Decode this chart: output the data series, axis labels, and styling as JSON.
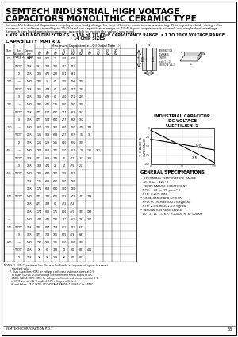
{
  "title_line1": "SEMTECH INDUSTRIAL HIGH VOLTAGE",
  "title_line2": "CAPACITORS MONOLITHIC CERAMIC TYPE",
  "desc1": "Semtech's Industrial Capacitors employ a new body design for cost efficient, volume manufacturing. This capacitor body design also",
  "desc2": "expands our voltage capability to 10 KV and our capacitance range to 47µF. If your requirement exceeds our single device ratings,",
  "desc3": "Semtech can build precision capacitor assembly to match the values you need.",
  "bullet1": "• X7R AND NPO DIELECTRICS  • 100 pF TO 47µF CAPACITANCE RANGE  • 1 TO 10KV VOLTAGE RANGE",
  "bullet2": "• 14 CHIP SIZES",
  "cap_matrix_title": "CAPABILITY MATRIX",
  "max_cap_header": "Maximum Capacitance—Oil Data (Note 1)",
  "col_headers": [
    "Size",
    "Size\nVoltage\n(Note 2)",
    "Dielec-\ntric\nType",
    "1\nKV",
    "2\nKV",
    "3\nKV",
    "5\nKV",
    "6.3\nKV",
    "8 KV",
    "7 KV",
    "10\nKV",
    "0.5\nKV",
    "20\nKV"
  ],
  "rows": [
    [
      "0.5",
      "—",
      "NPO",
      "100",
      "100",
      "27",
      "100",
      "100",
      "",
      "",
      "",
      "",
      ""
    ],
    [
      "",
      "Y5CW",
      "X7R",
      "392",
      "222",
      "100",
      "471",
      "271",
      "",
      "",
      "",
      "",
      ""
    ],
    [
      "",
      "X",
      "X7R",
      "105",
      "472",
      "222",
      "821",
      "391",
      "",
      "",
      "",
      "",
      ""
    ],
    [
      "200",
      "—",
      "NPO",
      "180",
      "39",
      "60",
      "100",
      "226",
      "100",
      "",
      "",
      "",
      ""
    ],
    [
      "",
      "Y5CW",
      "X7R",
      "105",
      "473",
      "60",
      "480",
      "471",
      "225",
      "",
      "",
      "",
      ""
    ],
    [
      "",
      "X",
      "X7R",
      "105",
      "473",
      "60",
      "480",
      "471",
      "225",
      "",
      "",
      "",
      ""
    ],
    [
      "225",
      "—",
      "NPO",
      "580",
      "471",
      "171",
      "680",
      "680",
      "100",
      "",
      "",
      "",
      ""
    ],
    [
      "",
      "Y5CW",
      "X7R",
      "475",
      "524",
      "680",
      "277",
      "182",
      "162",
      "",
      "",
      "",
      ""
    ],
    [
      "",
      "X",
      "X7R",
      "475",
      "524",
      "680",
      "277",
      "182",
      "162",
      "",
      "",
      "",
      ""
    ],
    [
      "250",
      "—",
      "NPO",
      "860",
      "206",
      "100",
      "680",
      "680",
      "475",
      "271",
      "",
      "",
      ""
    ],
    [
      "",
      "Y5CW",
      "X7R",
      "136",
      "103",
      "683",
      "277",
      "107",
      "16",
      "16",
      "",
      "",
      ""
    ],
    [
      "",
      "X",
      "X7R",
      "136",
      "123",
      "145",
      "640",
      "105",
      "108",
      "",
      "",
      "",
      ""
    ],
    [
      "400",
      "—",
      "NPO",
      "102",
      "862",
      "275",
      "560",
      "262",
      "22",
      "121",
      "101",
      "",
      ""
    ],
    [
      "",
      "Y5CW",
      "X7R",
      "473",
      "862",
      "271",
      "46",
      "472",
      "261",
      "261",
      "",
      "",
      ""
    ],
    [
      "",
      "X",
      "X7R",
      "103",
      "471",
      "24",
      "67",
      "475",
      "251",
      "",
      "",
      "",
      "",
      ""
    ],
    [
      "450",
      "Y5CW",
      "NPO",
      "180",
      "682",
      "100",
      "180",
      "821",
      "",
      "",
      "",
      "",
      ""
    ],
    [
      "",
      "",
      "X7R",
      "176",
      "663",
      "680",
      "580",
      "190",
      "",
      "",
      "",
      "",
      ""
    ],
    [
      "",
      "",
      "X7R",
      "176",
      "663",
      "680",
      "580",
      "190",
      "",
      "",
      "",
      "",
      ""
    ],
    [
      "545",
      "Y5CW",
      "NPO",
      "475",
      "222",
      "606",
      "502",
      "142",
      "481",
      "289",
      "",
      "",
      ""
    ],
    [
      "",
      "",
      "X7R",
      "475",
      "322",
      "60",
      "471",
      "472",
      "",
      "",
      "",
      "",
      ""
    ],
    [
      "",
      "",
      "X7R",
      "174",
      "862",
      "175",
      "806",
      "455",
      "189",
      "192",
      "",
      "",
      ""
    ],
    [
      "—",
      "",
      "NPO",
      "471",
      "472",
      "190",
      "271",
      "261",
      "231",
      "231",
      "",
      "",
      ""
    ],
    [
      "545",
      "Y5CW",
      "X7R",
      "376",
      "604",
      "753",
      "861",
      "421",
      "621",
      "",
      "",
      "",
      ""
    ],
    [
      "",
      "X",
      "X7R",
      "375",
      "752",
      "106",
      "805",
      "469",
      "891",
      "",
      "",
      "",
      ""
    ],
    [
      "640",
      "—",
      "NPO",
      "190",
      "102",
      "325",
      "560",
      "180",
      "180",
      "",
      "",
      "",
      ""
    ],
    [
      "",
      "Y5CW",
      "X7R",
      "94",
      "60",
      "323",
      "60",
      "60",
      "821",
      "421",
      "",
      "",
      ""
    ],
    [
      "",
      "X",
      "X7R",
      "94",
      "94",
      "363",
      "96",
      "60",
      "821",
      "",
      "",
      "",
      ""
    ]
  ],
  "notes_text": [
    "NOTES: 1. 50% Capacitance loss. Value in Picofarads, no adjustment, ignore to nearest",
    "          standard value.",
    "       2. Uses capacitors (X7R) for voltage coefficient and noise based at 0°C",
    "          to apply (0.25% DC) for voltage coefficient and stress based at 0°C.",
    "       • LABEL CAPACITORS (X7R) for voltage coefficient and stress based at 0°C",
    "         to 65°C and at +85°C applied 0.75 voltage coefficient.",
    "         At and below -25°C (X7R): VDCVOLTAGE RANGE: 10V/-65°C to +85°C"
  ],
  "dc_voltage_title": "INDUSTRIAL CAPACITOR\nDC VOLTAGE\nCOEFFICIENTS",
  "gen_spec_title": "GENERAL SPECIFICATIONS",
  "gen_specs": [
    "• OPERATING TEMPERATURE RANGE",
    "  -55°C to +125°C",
    "• TEMPERATURE COEFFICIENT",
    "  NPO: +30 to -75 ppm/°C",
    "  X7R: ±15% Max.",
    "• Capacitance and DF/ESR",
    "  NPO: 0.1% Max (0.27% typical)",
    "  X7R: 2.5% Max, 1.5% typical",
    "• INSULATION RESISTANCE",
    "  10^11 Ω, 1.0 KV, >10000 m at 100KV"
  ],
  "footer_left": "SEMTECH CORPORATION P.O.1",
  "page_num": "33"
}
